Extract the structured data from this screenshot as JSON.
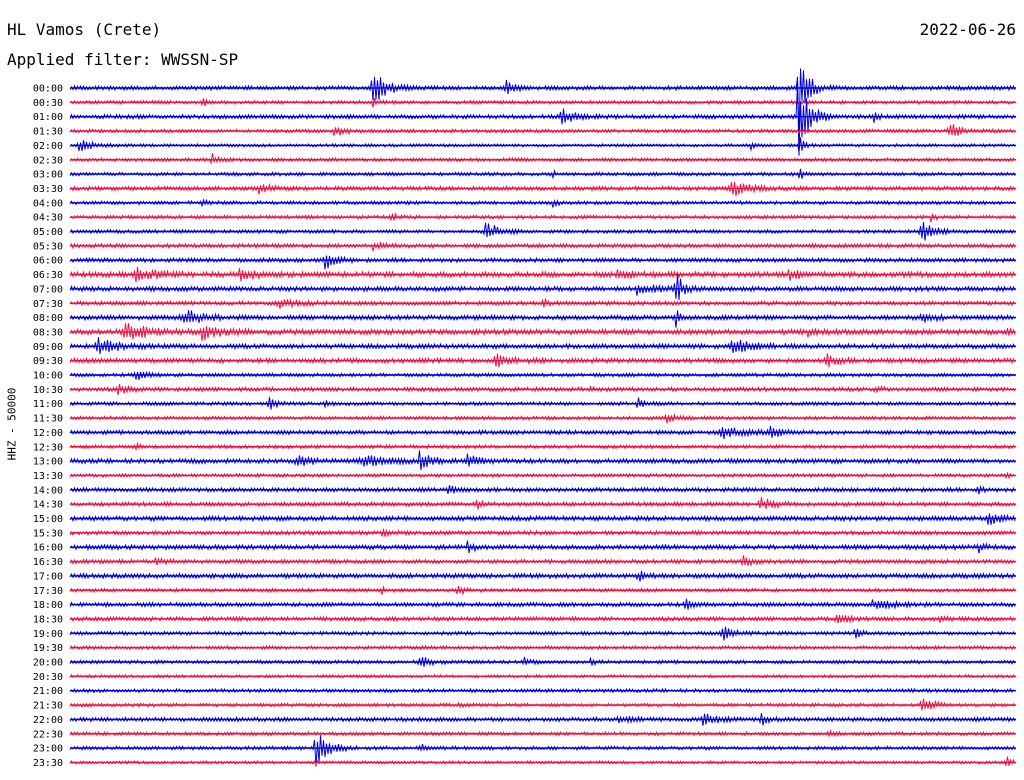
{
  "header": {
    "station": "HL Vamos (Crete)",
    "filter": "Applied filter: WWSSN-SP",
    "date": "2022-06-26",
    "channel": "HHZ - 50000"
  },
  "colors": {
    "trace_a": "#0000dd",
    "trace_b": "#ee1144"
  },
  "chart_data": {
    "type": "line",
    "title": "HL Vamos (Crete)",
    "subtitle": "Applied filter: WWSSN-SP",
    "date": "2022-06-26",
    "ylabel": "HHZ - 50000",
    "xlabel": "",
    "grid": false,
    "trace_minutes": 30,
    "rows": [
      {
        "time": "00:00",
        "color": "trace_a",
        "noise": 0.35,
        "events": [
          {
            "t": 0.32,
            "a": 3.0,
            "w": 0.012
          },
          {
            "t": 0.46,
            "a": 1.2,
            "w": 0.008
          },
          {
            "t": 0.77,
            "a": 9.0,
            "w": 0.008
          }
        ]
      },
      {
        "time": "00:30",
        "color": "trace_b",
        "noise": 0.3,
        "events": [
          {
            "t": 0.14,
            "a": 0.9,
            "w": 0.004
          },
          {
            "t": 0.32,
            "a": 0.8,
            "w": 0.004
          }
        ]
      },
      {
        "time": "01:00",
        "color": "trace_a",
        "noise": 0.35,
        "events": [
          {
            "t": 0.52,
            "a": 1.2,
            "w": 0.012
          },
          {
            "t": 0.77,
            "a": 8.0,
            "w": 0.01
          },
          {
            "t": 0.85,
            "a": 0.7,
            "w": 0.004
          }
        ]
      },
      {
        "time": "01:30",
        "color": "trace_b",
        "noise": 0.3,
        "events": [
          {
            "t": 0.28,
            "a": 1.1,
            "w": 0.008
          },
          {
            "t": 0.93,
            "a": 1.2,
            "w": 0.012
          }
        ]
      },
      {
        "time": "02:00",
        "color": "trace_a",
        "noise": 0.25,
        "events": [
          {
            "t": 0.01,
            "a": 1.0,
            "w": 0.012
          },
          {
            "t": 0.72,
            "a": 0.5,
            "w": 0.004
          },
          {
            "t": 0.77,
            "a": 2.5,
            "w": 0.004
          }
        ]
      },
      {
        "time": "02:30",
        "color": "trace_b",
        "noise": 0.3,
        "events": [
          {
            "t": 0.15,
            "a": 0.9,
            "w": 0.006
          }
        ]
      },
      {
        "time": "03:00",
        "color": "trace_a",
        "noise": 0.3,
        "events": [
          {
            "t": 0.51,
            "a": 0.5,
            "w": 0.003
          },
          {
            "t": 0.77,
            "a": 1.5,
            "w": 0.004
          }
        ]
      },
      {
        "time": "03:30",
        "color": "trace_b",
        "noise": 0.35,
        "events": [
          {
            "t": 0.2,
            "a": 1.0,
            "w": 0.008
          },
          {
            "t": 0.7,
            "a": 1.3,
            "w": 0.014
          }
        ]
      },
      {
        "time": "04:00",
        "color": "trace_a",
        "noise": 0.3,
        "events": [
          {
            "t": 0.14,
            "a": 0.8,
            "w": 0.003
          },
          {
            "t": 0.51,
            "a": 0.6,
            "w": 0.004
          }
        ]
      },
      {
        "time": "04:30",
        "color": "trace_b",
        "noise": 0.3,
        "events": [
          {
            "t": 0.34,
            "a": 0.5,
            "w": 0.006
          },
          {
            "t": 0.91,
            "a": 0.6,
            "w": 0.004
          }
        ]
      },
      {
        "time": "05:00",
        "color": "trace_a",
        "noise": 0.3,
        "events": [
          {
            "t": 0.44,
            "a": 1.6,
            "w": 0.012
          },
          {
            "t": 0.9,
            "a": 1.9,
            "w": 0.012
          }
        ]
      },
      {
        "time": "05:30",
        "color": "trace_b",
        "noise": 0.35,
        "events": [
          {
            "t": 0.32,
            "a": 0.8,
            "w": 0.008
          }
        ]
      },
      {
        "time": "06:00",
        "color": "trace_a",
        "noise": 0.35,
        "events": [
          {
            "t": 0.27,
            "a": 1.4,
            "w": 0.01
          }
        ]
      },
      {
        "time": "06:30",
        "color": "trace_b",
        "noise": 0.45,
        "events": [
          {
            "t": 0.07,
            "a": 0.9,
            "w": 0.02
          },
          {
            "t": 0.18,
            "a": 1.0,
            "w": 0.014
          },
          {
            "t": 0.58,
            "a": 0.7,
            "w": 0.012
          },
          {
            "t": 0.76,
            "a": 0.8,
            "w": 0.012
          }
        ]
      },
      {
        "time": "07:00",
        "color": "trace_a",
        "noise": 0.4,
        "events": [
          {
            "t": 0.6,
            "a": 0.9,
            "w": 0.015
          },
          {
            "t": 0.64,
            "a": 3.2,
            "w": 0.006
          }
        ]
      },
      {
        "time": "07:30",
        "color": "trace_b",
        "noise": 0.35,
        "events": [
          {
            "t": 0.22,
            "a": 0.7,
            "w": 0.02
          },
          {
            "t": 0.5,
            "a": 0.9,
            "w": 0.004
          }
        ]
      },
      {
        "time": "08:00",
        "color": "trace_a",
        "noise": 0.4,
        "events": [
          {
            "t": 0.12,
            "a": 1.3,
            "w": 0.018
          },
          {
            "t": 0.64,
            "a": 1.6,
            "w": 0.004
          },
          {
            "t": 0.9,
            "a": 1.0,
            "w": 0.01
          }
        ]
      },
      {
        "time": "08:30",
        "color": "trace_b",
        "noise": 0.45,
        "events": [
          {
            "t": 0.06,
            "a": 1.4,
            "w": 0.02
          },
          {
            "t": 0.14,
            "a": 1.1,
            "w": 0.016
          },
          {
            "t": 0.78,
            "a": 0.6,
            "w": 0.01
          },
          {
            "t": 0.99,
            "a": 0.9,
            "w": 0.006
          }
        ]
      },
      {
        "time": "09:00",
        "color": "trace_a",
        "noise": 0.4,
        "events": [
          {
            "t": 0.03,
            "a": 1.2,
            "w": 0.02
          },
          {
            "t": 0.7,
            "a": 1.1,
            "w": 0.018
          }
        ]
      },
      {
        "time": "09:30",
        "color": "trace_b",
        "noise": 0.4,
        "events": [
          {
            "t": 0.45,
            "a": 0.9,
            "w": 0.015
          },
          {
            "t": 0.8,
            "a": 0.9,
            "w": 0.01
          }
        ]
      },
      {
        "time": "10:00",
        "color": "trace_a",
        "noise": 0.3,
        "events": [
          {
            "t": 0.07,
            "a": 0.8,
            "w": 0.01
          }
        ]
      },
      {
        "time": "10:30",
        "color": "trace_b",
        "noise": 0.35,
        "events": [
          {
            "t": 0.05,
            "a": 0.8,
            "w": 0.01
          },
          {
            "t": 0.55,
            "a": 0.6,
            "w": 0.004
          },
          {
            "t": 0.85,
            "a": 0.6,
            "w": 0.006
          }
        ]
      },
      {
        "time": "11:00",
        "color": "trace_a",
        "noise": 0.3,
        "events": [
          {
            "t": 0.21,
            "a": 1.1,
            "w": 0.006
          },
          {
            "t": 0.27,
            "a": 0.6,
            "w": 0.004
          },
          {
            "t": 0.6,
            "a": 1.2,
            "w": 0.006
          }
        ]
      },
      {
        "time": "11:30",
        "color": "trace_b",
        "noise": 0.3,
        "events": [
          {
            "t": 0.63,
            "a": 0.7,
            "w": 0.01
          }
        ]
      },
      {
        "time": "12:00",
        "color": "trace_a",
        "noise": 0.35,
        "events": [
          {
            "t": 0.69,
            "a": 0.8,
            "w": 0.02
          },
          {
            "t": 0.74,
            "a": 0.7,
            "w": 0.012
          }
        ]
      },
      {
        "time": "12:30",
        "color": "trace_b",
        "noise": 0.3,
        "events": [
          {
            "t": 0.07,
            "a": 0.6,
            "w": 0.004
          }
        ]
      },
      {
        "time": "13:00",
        "color": "trace_a",
        "noise": 0.4,
        "events": [
          {
            "t": 0.24,
            "a": 1.2,
            "w": 0.01
          },
          {
            "t": 0.31,
            "a": 0.9,
            "w": 0.02
          },
          {
            "t": 0.37,
            "a": 1.6,
            "w": 0.01
          },
          {
            "t": 0.42,
            "a": 1.0,
            "w": 0.01
          }
        ]
      },
      {
        "time": "13:30",
        "color": "trace_b",
        "noise": 0.3,
        "events": [
          {
            "t": 0.99,
            "a": 0.6,
            "w": 0.004
          }
        ]
      },
      {
        "time": "14:00",
        "color": "trace_a",
        "noise": 0.35,
        "events": [
          {
            "t": 0.4,
            "a": 0.7,
            "w": 0.006
          },
          {
            "t": 0.96,
            "a": 0.8,
            "w": 0.004
          }
        ]
      },
      {
        "time": "14:30",
        "color": "trace_b",
        "noise": 0.35,
        "events": [
          {
            "t": 0.43,
            "a": 0.7,
            "w": 0.004
          },
          {
            "t": 0.73,
            "a": 1.0,
            "w": 0.012
          }
        ]
      },
      {
        "time": "15:00",
        "color": "trace_a",
        "noise": 0.4,
        "events": [
          {
            "t": 0.97,
            "a": 0.9,
            "w": 0.012
          }
        ]
      },
      {
        "time": "15:30",
        "color": "trace_b",
        "noise": 0.35,
        "events": [
          {
            "t": 0.33,
            "a": 0.7,
            "w": 0.006
          }
        ]
      },
      {
        "time": "16:00",
        "color": "trace_a",
        "noise": 0.4,
        "events": [
          {
            "t": 0.42,
            "a": 1.0,
            "w": 0.006
          },
          {
            "t": 0.96,
            "a": 0.7,
            "w": 0.006
          }
        ]
      },
      {
        "time": "16:30",
        "color": "trace_b",
        "noise": 0.35,
        "events": [
          {
            "t": 0.09,
            "a": 0.8,
            "w": 0.006
          },
          {
            "t": 0.71,
            "a": 0.9,
            "w": 0.008
          }
        ]
      },
      {
        "time": "17:00",
        "color": "trace_a",
        "noise": 0.4,
        "events": [
          {
            "t": 0.6,
            "a": 0.9,
            "w": 0.006
          }
        ]
      },
      {
        "time": "17:30",
        "color": "trace_b",
        "noise": 0.3,
        "events": [
          {
            "t": 0.41,
            "a": 0.9,
            "w": 0.006
          },
          {
            "t": 0.33,
            "a": 0.5,
            "w": 0.004
          }
        ]
      },
      {
        "time": "18:00",
        "color": "trace_a",
        "noise": 0.35,
        "events": [
          {
            "t": 0.65,
            "a": 0.9,
            "w": 0.006
          },
          {
            "t": 0.85,
            "a": 0.7,
            "w": 0.02
          }
        ]
      },
      {
        "time": "18:30",
        "color": "trace_b",
        "noise": 0.35,
        "events": [
          {
            "t": 0.81,
            "a": 1.3,
            "w": 0.008
          },
          {
            "t": 0.92,
            "a": 0.7,
            "w": 0.006
          }
        ]
      },
      {
        "time": "19:00",
        "color": "trace_a",
        "noise": 0.3,
        "events": [
          {
            "t": 0.69,
            "a": 1.1,
            "w": 0.01
          },
          {
            "t": 0.83,
            "a": 0.8,
            "w": 0.006
          }
        ]
      },
      {
        "time": "19:30",
        "color": "trace_b",
        "noise": 0.3,
        "events": []
      },
      {
        "time": "20:00",
        "color": "trace_a",
        "noise": 0.3,
        "events": [
          {
            "t": 0.37,
            "a": 0.9,
            "w": 0.01
          },
          {
            "t": 0.48,
            "a": 0.6,
            "w": 0.006
          },
          {
            "t": 0.55,
            "a": 0.5,
            "w": 0.006
          }
        ]
      },
      {
        "time": "20:30",
        "color": "trace_b",
        "noise": 0.25,
        "events": []
      },
      {
        "time": "21:00",
        "color": "trace_a",
        "noise": 0.3,
        "events": []
      },
      {
        "time": "21:30",
        "color": "trace_b",
        "noise": 0.3,
        "events": [
          {
            "t": 0.41,
            "a": 0.5,
            "w": 0.006
          },
          {
            "t": 0.9,
            "a": 1.0,
            "w": 0.012
          }
        ]
      },
      {
        "time": "22:00",
        "color": "trace_a",
        "noise": 0.35,
        "events": [
          {
            "t": 0.58,
            "a": 0.7,
            "w": 0.01
          },
          {
            "t": 0.67,
            "a": 1.0,
            "w": 0.012
          },
          {
            "t": 0.73,
            "a": 1.0,
            "w": 0.006
          }
        ]
      },
      {
        "time": "22:30",
        "color": "trace_b",
        "noise": 0.3,
        "events": [
          {
            "t": 0.8,
            "a": 0.5,
            "w": 0.006
          }
        ]
      },
      {
        "time": "23:00",
        "color": "trace_a",
        "noise": 0.3,
        "events": [
          {
            "t": 0.26,
            "a": 2.8,
            "w": 0.012
          },
          {
            "t": 0.37,
            "a": 0.7,
            "w": 0.006
          }
        ]
      },
      {
        "time": "23:30",
        "color": "trace_b",
        "noise": 0.25,
        "events": [
          {
            "t": 0.99,
            "a": 1.2,
            "w": 0.004
          }
        ]
      }
    ]
  }
}
